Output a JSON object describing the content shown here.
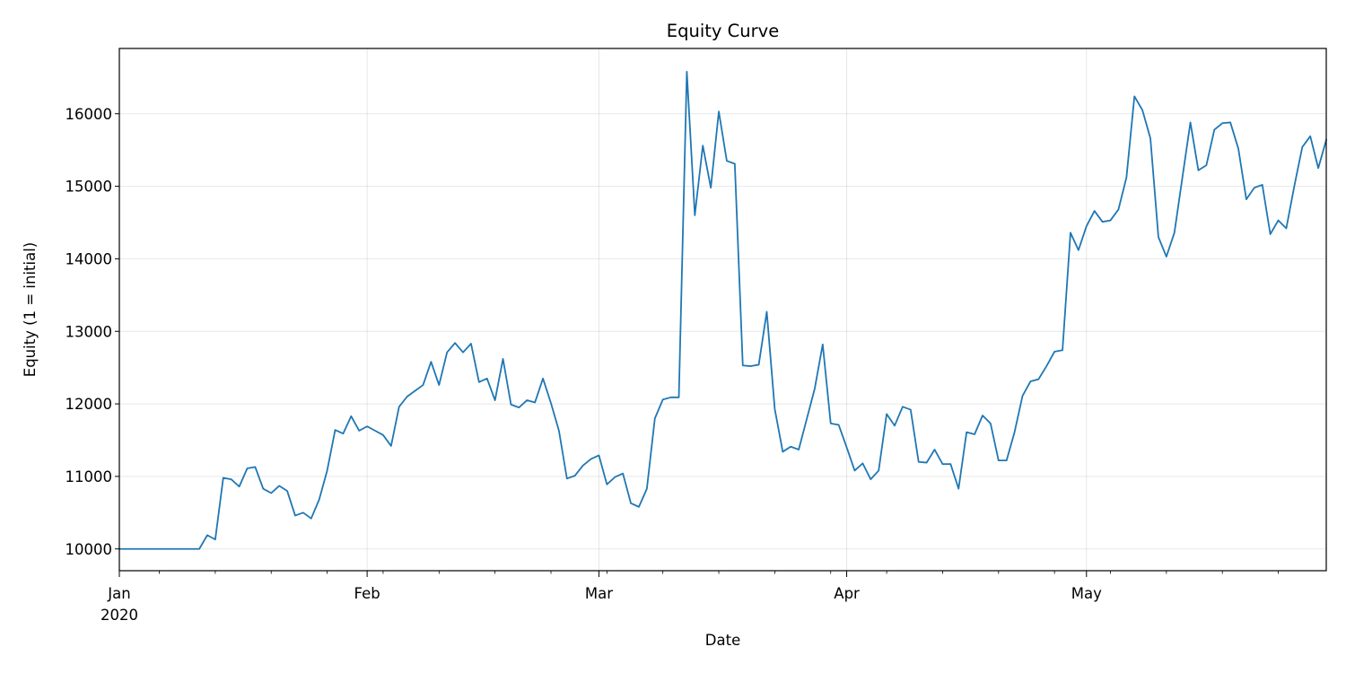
{
  "chart_data": {
    "type": "line",
    "title": "Equity Curve",
    "xlabel": "Date",
    "ylabel": "Equity (1 = initial)",
    "x_tick_labels": [
      {
        "date": "2020-01-01",
        "label": "Jan",
        "sublabel": "2020"
      },
      {
        "date": "2020-02-01",
        "label": "Feb",
        "sublabel": ""
      },
      {
        "date": "2020-03-01",
        "label": "Mar",
        "sublabel": ""
      },
      {
        "date": "2020-04-01",
        "label": "Apr",
        "sublabel": ""
      },
      {
        "date": "2020-05-01",
        "label": "May",
        "sublabel": ""
      }
    ],
    "y_ticks": [
      10000,
      11000,
      12000,
      13000,
      14000,
      15000,
      16000
    ],
    "y_tick_labels": [
      "10000",
      "11000",
      "12000",
      "13000",
      "14000",
      "15000",
      "16000"
    ],
    "xlim": [
      "2020-01-01",
      "2020-05-31"
    ],
    "ylim": [
      9700,
      16900
    ],
    "grid": true,
    "line_color": "#1f77b4",
    "series": [
      {
        "x_start": "2020-01-01",
        "x_step_days": 1,
        "values": [
          10000,
          10000,
          10000,
          10000,
          10000,
          10000,
          10000,
          10000,
          10000,
          10000,
          10000,
          10190,
          10130,
          10980,
          10960,
          10860,
          11110,
          11130,
          10830,
          10770,
          10870,
          10800,
          10460,
          10500,
          10420,
          10680,
          11080,
          11640,
          11590,
          11830,
          11630,
          11690,
          11630,
          11570,
          11420,
          11960,
          12100,
          12180,
          12260,
          12580,
          12260,
          12710,
          12840,
          12710,
          12830,
          12300,
          12350,
          12050,
          12620,
          11990,
          11950,
          12050,
          12020,
          12350,
          12010,
          11630,
          10970,
          11010,
          11150,
          11240,
          11290,
          10890,
          10990,
          11040,
          10630,
          10580,
          10830,
          11800,
          12060,
          12090,
          12090,
          16580,
          14600,
          15560,
          14980,
          16030,
          15350,
          15310,
          12530,
          12520,
          12540,
          13270,
          11930,
          11340,
          11410,
          11370,
          11790,
          12210,
          12820,
          11730,
          11710,
          11400,
          11080,
          11180,
          10960,
          11080,
          11860,
          11700,
          11960,
          11920,
          11200,
          11190,
          11370,
          11170,
          11170,
          10830,
          11610,
          11580,
          11840,
          11730,
          11220,
          11220,
          11610,
          12110,
          12310,
          12340,
          12520,
          12720,
          12740,
          14360,
          14120,
          14450,
          14660,
          14510,
          14530,
          14680,
          15120,
          16240,
          16050,
          15660,
          14300,
          14030,
          14360,
          15120,
          15880,
          15220,
          15290,
          15780,
          15870,
          15880,
          15520,
          14820,
          14980,
          15020,
          14340,
          14530,
          14420,
          15000,
          15540,
          15690,
          15250,
          15640
        ]
      }
    ]
  }
}
